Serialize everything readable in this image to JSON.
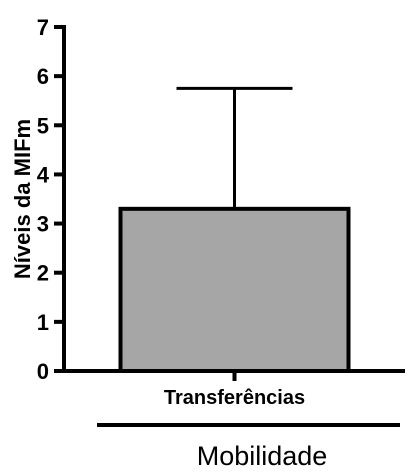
{
  "chart_data": {
    "type": "bar",
    "categories": [
      "Transferências"
    ],
    "values": [
      3.3
    ],
    "error_upper": [
      5.75
    ],
    "ylabel": "Níveis da MIFm",
    "xlabel": "Mobilidade",
    "ylim": [
      0,
      7
    ],
    "yticks": [
      0,
      1,
      2,
      3,
      4,
      5,
      6,
      7
    ],
    "bar_color": "#a6a6a6",
    "grid": false
  }
}
